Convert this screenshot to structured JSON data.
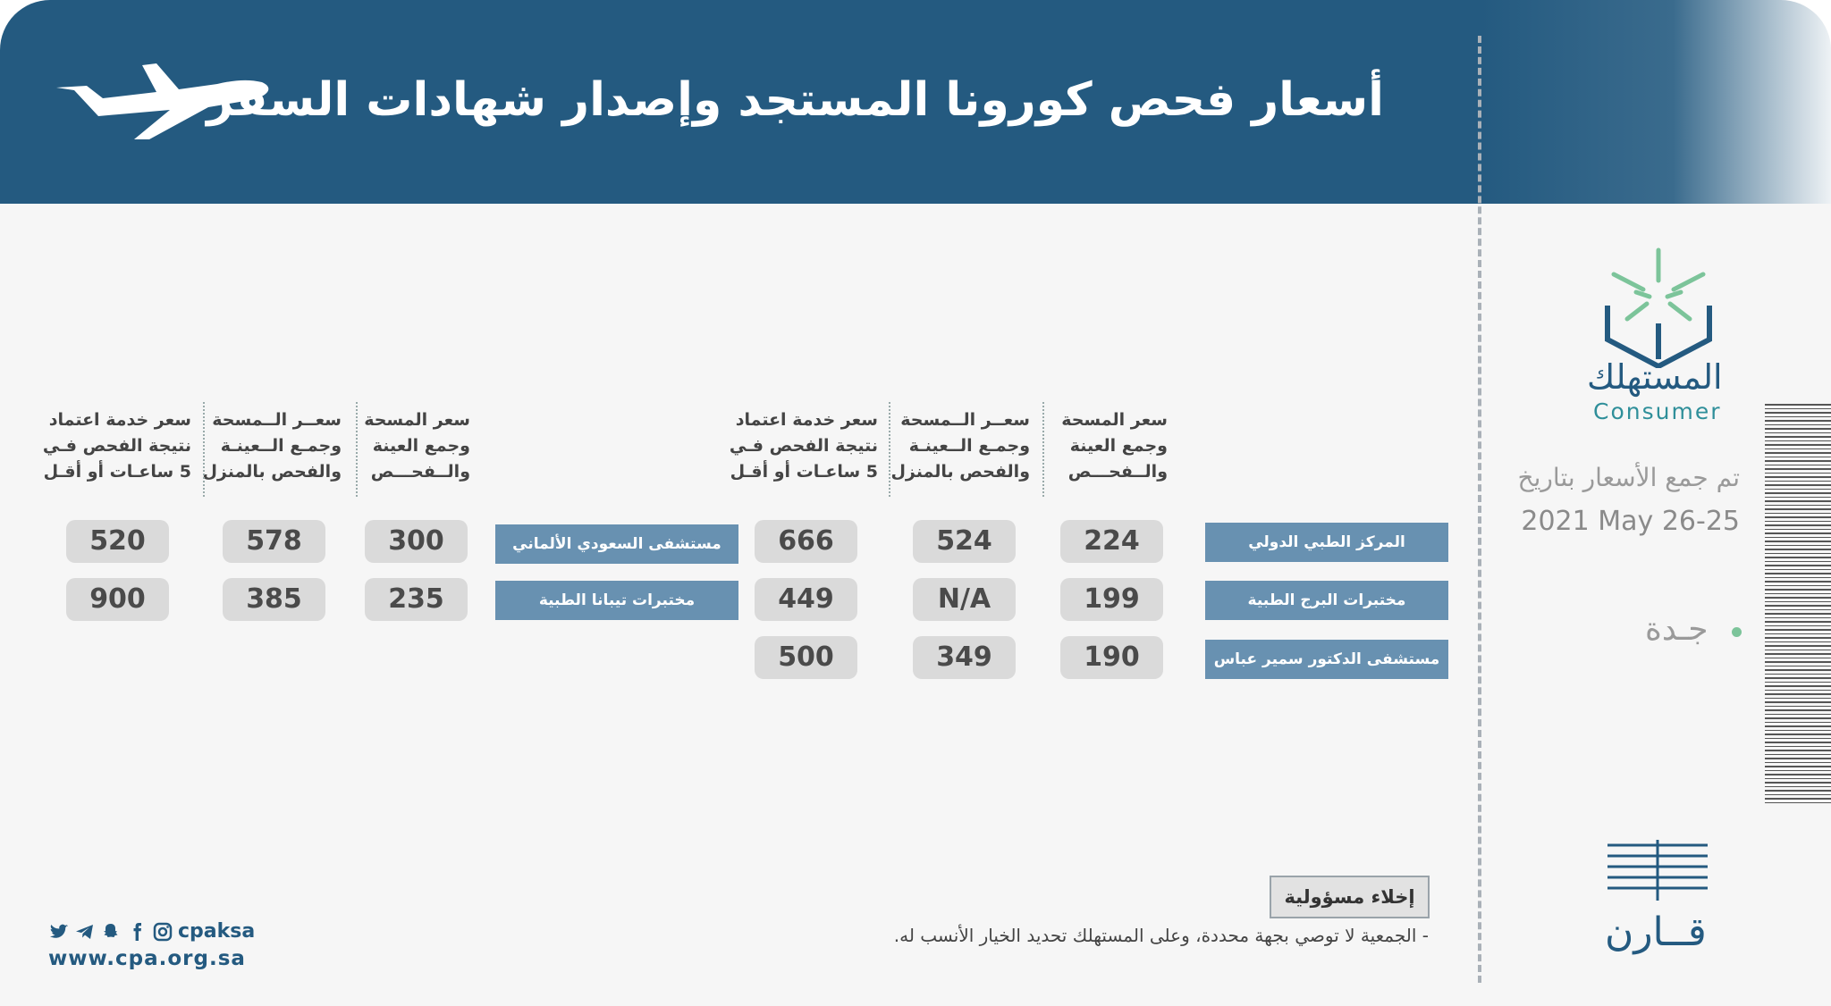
{
  "title": "أسعار فحص كورونا المستجد وإصدار شهادات السفر",
  "columns": {
    "swab_collection_test": "سعر المسحة\nوجمع العينة\nوالــفحـــص",
    "home_swab": "سعــر الــمسحة\nوجمـع الــعينـة\nوالفحص بالمنزل",
    "fast_result": "سعر خدمة اعتماد\nنتيجة الفحص فـي\n5 ساعـات أو أقـل"
  },
  "groups": [
    {
      "rows": [
        {
          "lab": "المركز الطبي الدولي",
          "values": [
            "224",
            "524",
            "666"
          ]
        },
        {
          "lab": "مختبرات البرج الطبية",
          "values": [
            "199",
            "N/A",
            "449"
          ]
        },
        {
          "lab": "مستشفى الدكتور سمير عباس",
          "values": [
            "190",
            "349",
            "500"
          ]
        }
      ]
    },
    {
      "rows": [
        {
          "lab": "مستشفى السعودي الألماني",
          "values": [
            "300",
            "578",
            "520"
          ]
        },
        {
          "lab": "مختبرات تيبانا الطبية",
          "values": [
            "235",
            "385",
            "900"
          ]
        }
      ]
    }
  ],
  "sidebar": {
    "logo_ar": "المستهلك",
    "logo_en": "Consumer",
    "date_label": "تم جمع الأسعار بتاريخ",
    "date_value": "2021 May 26-25",
    "city": "جـدة",
    "brand": "قــارن"
  },
  "footer": {
    "disclaimer_title": "إخلاء مسؤولية",
    "disclaimer_text": "- الجمعية لا توصي بجهة محددة، وعلى المستهلك تحديد الخيار الأنسب له.",
    "social_handle": "cpaksa",
    "website": "www.cpa.org.sa"
  },
  "icons": [
    "airplane-icon",
    "twitter-icon",
    "telegram-icon",
    "snapchat-icon",
    "facebook-icon",
    "instagram-icon"
  ],
  "colors": {
    "header": "#245a80",
    "label": "#6891b1",
    "value_box": "#dadada",
    "accent_green": "#7cc49a"
  }
}
